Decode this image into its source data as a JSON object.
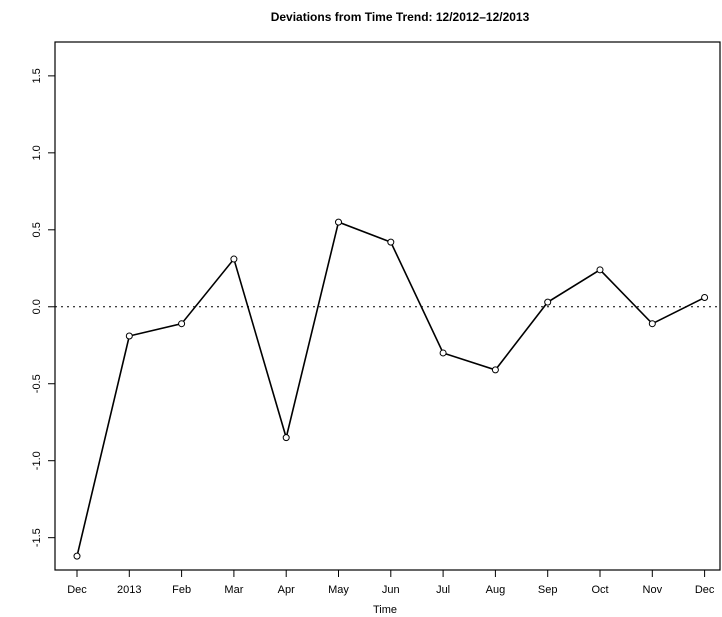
{
  "chart_data": {
    "type": "line",
    "title": "Deviations from Time Trend: 12/2012–12/2013",
    "xlabel": "Time",
    "categories": [
      "Dec",
      "2013",
      "Feb",
      "Mar",
      "Apr",
      "May",
      "Jun",
      "Jul",
      "Aug",
      "Sep",
      "Oct",
      "Nov",
      "Dec"
    ],
    "series": [
      {
        "name": "Deviation",
        "color": "#000000",
        "values": [
          -1.62,
          -0.19,
          -0.11,
          0.31,
          -0.85,
          0.55,
          0.42,
          -0.3,
          -0.41,
          0.03,
          0.24,
          -0.11,
          0.06
        ]
      }
    ],
    "ylim": [
      -1.71,
      1.72
    ],
    "yticks": [
      -1.5,
      {
        "value": -1,
        "label": "-1.0"
      },
      -0.5,
      {
        "value": 0,
        "label": "0.0"
      },
      0.5,
      {
        "value": 1,
        "label": "1.0"
      },
      1.5
    ],
    "reference_line": 0,
    "grid": false
  }
}
